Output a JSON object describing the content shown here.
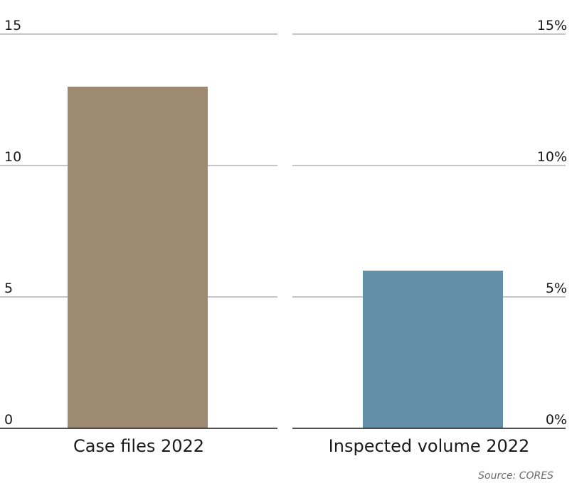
{
  "chart_data": [
    {
      "type": "bar",
      "categories": [
        "Case files 2022"
      ],
      "values": [
        13
      ],
      "ylim": [
        0,
        15
      ],
      "yticks": [
        "0",
        "5",
        "10",
        "15"
      ],
      "grid": true,
      "color": "#9e8a70"
    },
    {
      "type": "bar",
      "categories": [
        "Inspected volume 2022"
      ],
      "values": [
        6
      ],
      "ylim": [
        0,
        15
      ],
      "yticks": [
        "0%",
        "5%",
        "10%",
        "15%"
      ],
      "grid": true,
      "color": "#6290a8"
    }
  ],
  "source": "Source: CORES"
}
